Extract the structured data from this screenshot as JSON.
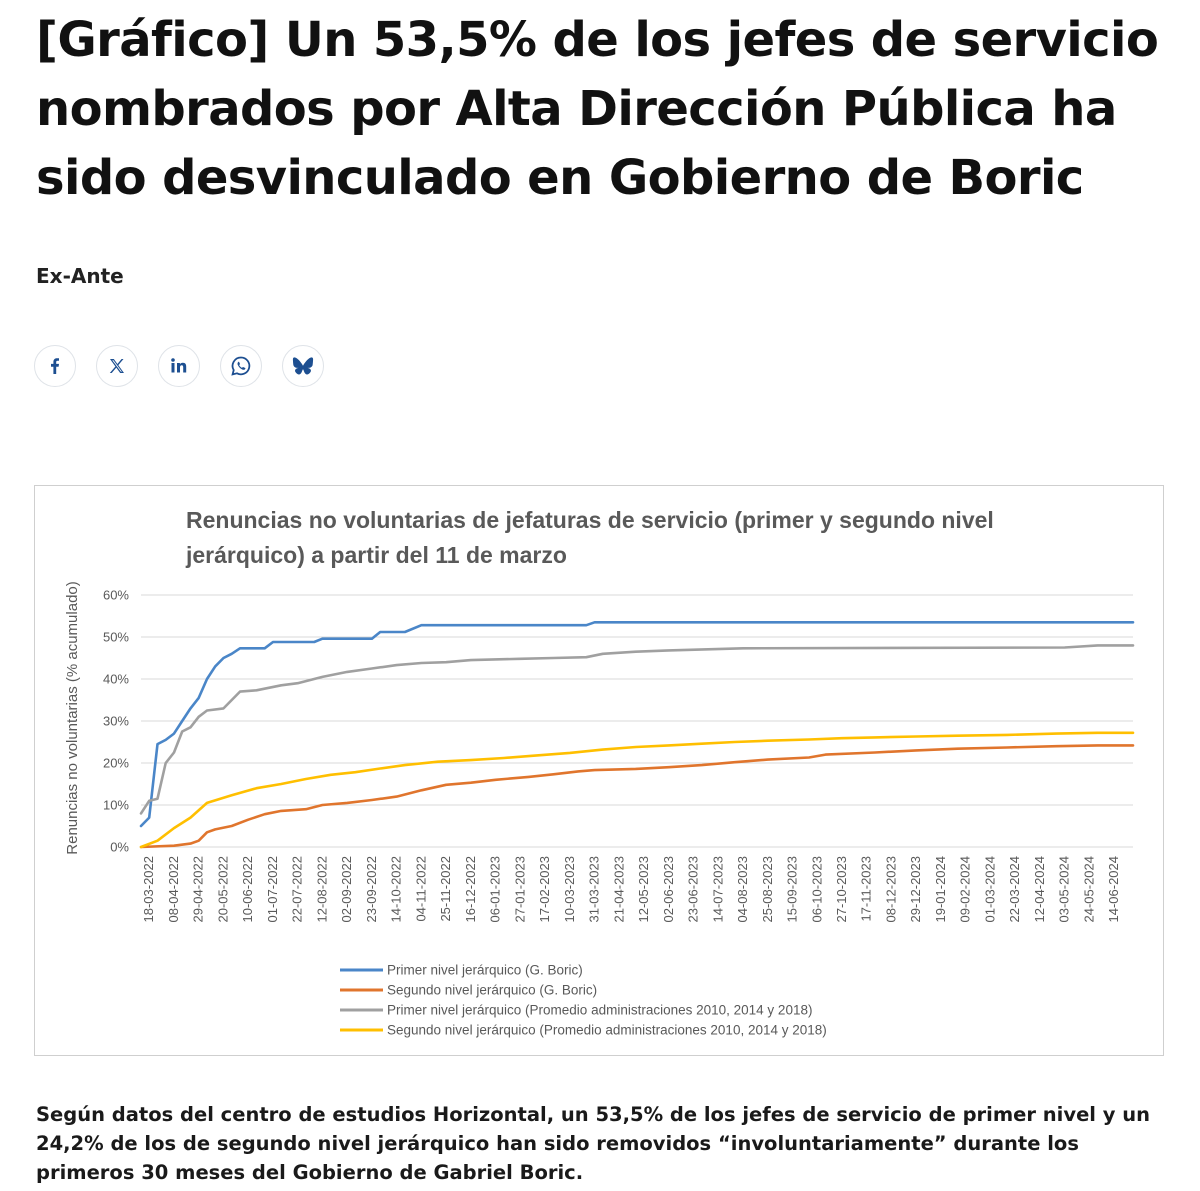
{
  "article": {
    "headline": "[Gráfico] Un 53,5% de los jefes de servicio nombrados por Alta Dirección Pública ha sido desvinculado en Gobierno de Boric",
    "author": "Ex-Ante",
    "caption": "Según datos del centro de estudios Horizontal, un 53,5% de los jefes de servicio de primer nivel y un 24,2% de los de segundo nivel jerárquico han sido removidos “involuntariamente” durante los primeros 30 meses del Gobierno de Gabriel Boric."
  },
  "share": [
    {
      "icon": "facebook-icon",
      "color": "#1d4f91"
    },
    {
      "icon": "x-icon",
      "color": "#1d4f91"
    },
    {
      "icon": "linkedin-icon",
      "color": "#1d4f91"
    },
    {
      "icon": "whatsapp-icon",
      "color": "#1d4f91"
    },
    {
      "icon": "bluesky-icon",
      "color": "#1d4f91"
    }
  ],
  "chart_data": {
    "type": "line",
    "title": "Renuncias no voluntarias de jefaturas de servicio (primer y segundo nivel jerárquico) a partir del 11 de marzo",
    "title_lines": [
      "Renuncias no voluntarias de jefaturas de servicio (primer y segundo nivel",
      "jerárquico) a partir del 11 de marzo"
    ],
    "ylabel": "Renuncias no voluntarias (% acumulado)",
    "xlabel": "",
    "ylim": [
      0,
      60
    ],
    "yticks": [
      0,
      10,
      20,
      30,
      40,
      50,
      60
    ],
    "ytick_labels": [
      "0%",
      "10%",
      "20%",
      "30%",
      "40%",
      "50%",
      "60%"
    ],
    "grid": "horizontal",
    "legend_position": "bottom-center",
    "x_start": "11-03-2022",
    "x_end": "30-06-2024",
    "x_tick_labels": [
      "18-03-2022",
      "08-04-2022",
      "29-04-2022",
      "20-05-2022",
      "10-06-2022",
      "01-07-2022",
      "22-07-2022",
      "12-08-2022",
      "02-09-2022",
      "23-09-2022",
      "14-10-2022",
      "04-11-2022",
      "25-11-2022",
      "16-12-2022",
      "06-01-2023",
      "27-01-2023",
      "17-02-2023",
      "10-03-2023",
      "31-03-2023",
      "21-04-2023",
      "12-05-2023",
      "02-06-2023",
      "23-06-2023",
      "14-07-2023",
      "04-08-2023",
      "25-08-2023",
      "15-09-2023",
      "06-10-2023",
      "27-10-2023",
      "17-11-2023",
      "08-12-2023",
      "29-12-2023",
      "19-01-2024",
      "09-02-2024",
      "01-03-2024",
      "22-03-2024",
      "12-04-2024",
      "03-05-2024",
      "24-05-2024",
      "14-06-2024"
    ],
    "series": [
      {
        "name": "Primer nivel jerárquico (G. Boric)",
        "color": "#4a86c8",
        "points": [
          [
            "11-03-2022",
            5
          ],
          [
            "18-03-2022",
            7
          ],
          [
            "25-03-2022",
            24.5
          ],
          [
            "01-04-2022",
            25.5
          ],
          [
            "08-04-2022",
            27
          ],
          [
            "15-04-2022",
            30
          ],
          [
            "22-04-2022",
            33
          ],
          [
            "29-04-2022",
            35.5
          ],
          [
            "06-05-2022",
            40
          ],
          [
            "13-05-2022",
            43
          ],
          [
            "20-05-2022",
            45
          ],
          [
            "27-05-2022",
            46
          ],
          [
            "03-06-2022",
            47.3
          ],
          [
            "24-06-2022",
            47.3
          ],
          [
            "01-07-2022",
            48.8
          ],
          [
            "05-08-2022",
            48.8
          ],
          [
            "12-08-2022",
            49.6
          ],
          [
            "23-09-2022",
            49.6
          ],
          [
            "30-09-2022",
            51.2
          ],
          [
            "21-10-2022",
            51.2
          ],
          [
            "04-11-2022",
            52.8
          ],
          [
            "24-03-2023",
            52.8
          ],
          [
            "31-03-2023",
            53.5
          ],
          [
            "30-06-2024",
            53.5
          ]
        ]
      },
      {
        "name": "Segundo nivel jerárquico (G. Boric)",
        "color": "#e0752d",
        "points": [
          [
            "11-03-2022",
            0
          ],
          [
            "08-04-2022",
            0.3
          ],
          [
            "22-04-2022",
            0.8
          ],
          [
            "29-04-2022",
            1.5
          ],
          [
            "06-05-2022",
            3.5
          ],
          [
            "13-05-2022",
            4.2
          ],
          [
            "27-05-2022",
            5
          ],
          [
            "10-06-2022",
            6.5
          ],
          [
            "24-06-2022",
            7.8
          ],
          [
            "08-07-2022",
            8.6
          ],
          [
            "29-07-2022",
            9
          ],
          [
            "12-08-2022",
            10
          ],
          [
            "02-09-2022",
            10.5
          ],
          [
            "23-09-2022",
            11.2
          ],
          [
            "14-10-2022",
            12
          ],
          [
            "04-11-2022",
            13.5
          ],
          [
            "25-11-2022",
            14.8
          ],
          [
            "16-12-2022",
            15.3
          ],
          [
            "06-01-2023",
            16
          ],
          [
            "03-02-2023",
            16.7
          ],
          [
            "24-02-2023",
            17.3
          ],
          [
            "17-03-2023",
            18
          ],
          [
            "31-03-2023",
            18.3
          ],
          [
            "05-05-2023",
            18.6
          ],
          [
            "02-06-2023",
            19
          ],
          [
            "30-06-2023",
            19.5
          ],
          [
            "28-07-2023",
            20.2
          ],
          [
            "25-08-2023",
            20.8
          ],
          [
            "29-09-2023",
            21.3
          ],
          [
            "13-10-2023",
            22
          ],
          [
            "24-11-2023",
            22.5
          ],
          [
            "29-12-2023",
            23
          ],
          [
            "02-02-2024",
            23.4
          ],
          [
            "15-03-2024",
            23.7
          ],
          [
            "26-04-2024",
            24
          ],
          [
            "31-05-2024",
            24.2
          ],
          [
            "30-06-2024",
            24.2
          ]
        ]
      },
      {
        "name": "Primer nivel jerárquico (Promedio administraciones 2010, 2014 y 2018)",
        "color": "#a0a0a0",
        "points": [
          [
            "11-03-2022",
            8
          ],
          [
            "18-03-2022",
            11
          ],
          [
            "25-03-2022",
            11.5
          ],
          [
            "01-04-2022",
            20
          ],
          [
            "08-04-2022",
            22.5
          ],
          [
            "15-04-2022",
            27.5
          ],
          [
            "22-04-2022",
            28.5
          ],
          [
            "29-04-2022",
            31
          ],
          [
            "06-05-2022",
            32.5
          ],
          [
            "20-05-2022",
            33
          ],
          [
            "03-06-2022",
            37
          ],
          [
            "17-06-2022",
            37.3
          ],
          [
            "08-07-2022",
            38.5
          ],
          [
            "22-07-2022",
            39
          ],
          [
            "12-08-2022",
            40.5
          ],
          [
            "02-09-2022",
            41.7
          ],
          [
            "23-09-2022",
            42.5
          ],
          [
            "14-10-2022",
            43.3
          ],
          [
            "04-11-2022",
            43.8
          ],
          [
            "25-11-2022",
            44
          ],
          [
            "16-12-2022",
            44.5
          ],
          [
            "27-01-2023",
            44.8
          ],
          [
            "24-02-2023",
            45
          ],
          [
            "24-03-2023",
            45.2
          ],
          [
            "07-04-2023",
            46
          ],
          [
            "05-05-2023",
            46.5
          ],
          [
            "02-06-2023",
            46.8
          ],
          [
            "04-08-2023",
            47.3
          ],
          [
            "03-05-2024",
            47.5
          ],
          [
            "31-05-2024",
            48
          ],
          [
            "30-06-2024",
            48
          ]
        ]
      },
      {
        "name": "Segundo nivel jerárquico (Promedio administraciones 2010, 2014 y 2018)",
        "color": "#ffbf00",
        "points": [
          [
            "11-03-2022",
            0
          ],
          [
            "25-03-2022",
            1.5
          ],
          [
            "08-04-2022",
            4.5
          ],
          [
            "22-04-2022",
            7
          ],
          [
            "06-05-2022",
            10.5
          ],
          [
            "27-05-2022",
            12.3
          ],
          [
            "17-06-2022",
            14
          ],
          [
            "08-07-2022",
            15
          ],
          [
            "29-07-2022",
            16.2
          ],
          [
            "19-08-2022",
            17.2
          ],
          [
            "09-09-2022",
            17.8
          ],
          [
            "30-09-2022",
            18.7
          ],
          [
            "21-10-2022",
            19.5
          ],
          [
            "18-11-2022",
            20.3
          ],
          [
            "16-12-2022",
            20.7
          ],
          [
            "13-01-2023",
            21.2
          ],
          [
            "10-02-2023",
            21.8
          ],
          [
            "10-03-2023",
            22.4
          ],
          [
            "07-04-2023",
            23.2
          ],
          [
            "05-05-2023",
            23.8
          ],
          [
            "02-06-2023",
            24.2
          ],
          [
            "30-06-2023",
            24.6
          ],
          [
            "28-07-2023",
            25
          ],
          [
            "25-08-2023",
            25.3
          ],
          [
            "29-09-2023",
            25.6
          ],
          [
            "27-10-2023",
            25.9
          ],
          [
            "24-11-2023",
            26.1
          ],
          [
            "29-12-2023",
            26.3
          ],
          [
            "02-02-2024",
            26.5
          ],
          [
            "15-03-2024",
            26.7
          ],
          [
            "26-04-2024",
            27
          ],
          [
            "31-05-2024",
            27.2
          ],
          [
            "30-06-2024",
            27.2
          ]
        ]
      }
    ]
  }
}
